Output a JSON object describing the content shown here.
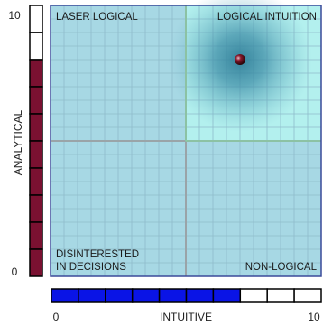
{
  "chart_data": {
    "type": "scatter",
    "xlabel": "INTUITIVE",
    "ylabel": "ANALYTICAL",
    "xlim": [
      0,
      10
    ],
    "ylim": [
      0,
      10
    ],
    "x_ticks": [
      "0",
      "10"
    ],
    "y_ticks": [
      "0",
      "10"
    ],
    "grid": true,
    "quadrant_labels": {
      "top_left": "LASER LOGICAL",
      "top_right": "LOGICAL INTUITION",
      "bottom_left_line1": "DISINTERESTED",
      "bottom_left_line2": "IN DECISIONS",
      "bottom_right": "NON-LOGICAL"
    },
    "point": {
      "x": 7,
      "y": 8
    },
    "y_meter": {
      "segments": 10,
      "filled": 8
    },
    "x_meter": {
      "segments": 10,
      "filled": 7
    },
    "colors": {
      "plot_background": "#a7d8e4",
      "highlight_quadrant": "#b3f0ee",
      "grid": "#8fbccb",
      "divider": "#9aa4a8",
      "border": "#3a4a9a",
      "y_meter_fill": "#7a1131",
      "x_meter_fill": "#0a14e6",
      "meter_empty": "#ffffff",
      "point": "#5a0d1a",
      "glow": "#3f8fa8"
    }
  }
}
